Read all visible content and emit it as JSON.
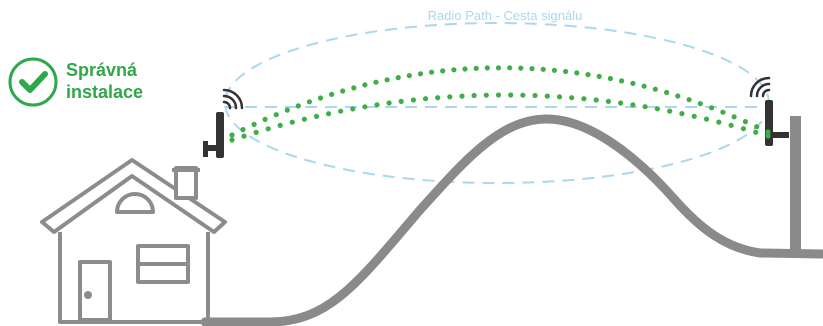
{
  "badge": {
    "line1": "Správná",
    "line2": "instalace",
    "icon": "check-circle-icon"
  },
  "radio_path_label": "Radio Path - Cesta signálu",
  "colors": {
    "accent_green": "#2ea84a",
    "signal_dots": "#3fae49",
    "fresnel_zone": "#a9d8ef",
    "terrain": "#8a8a8a",
    "house_outline": "#8c8c8c",
    "antenna": "#333333"
  }
}
